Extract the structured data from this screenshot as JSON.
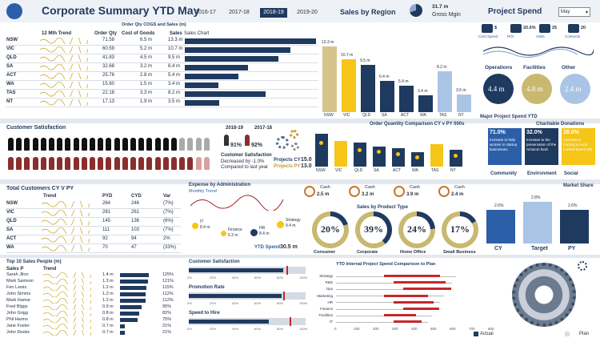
{
  "title": "Corporate Summary YTD May",
  "years": [
    "2016-17",
    "2017-18",
    "2018-19",
    "2019-20"
  ],
  "active_year": "2018-19",
  "sales_region_title": "Sales by Region",
  "gross_margin": {
    "value": "31.7 m",
    "label": "Gross Mgin"
  },
  "project_spend_title": "Project Spend",
  "month_select": "May",
  "kpi_icons": [
    {
      "label": "Card Spend",
      "value": "$"
    },
    {
      "label": "ROI",
      "value": "20.6%"
    },
    {
      "label": "Visits",
      "value": "25"
    },
    {
      "label": "Contracts",
      "value": "20"
    }
  ],
  "spend_circles": [
    {
      "label": "Operations",
      "value": "4.4 m"
    },
    {
      "label": "Facilities",
      "value": "4.8 m"
    },
    {
      "label": "Other",
      "value": "2.4 m"
    }
  ],
  "region_table": {
    "title": "Order Qty COGS and Sales (m)",
    "headers": [
      "State",
      "12 Mth Trend",
      "Order Qty",
      "Cost of Goods",
      "Sales",
      "Sales Chart"
    ],
    "rows": [
      [
        "NSW",
        "71.58",
        "6.5 m",
        "13.3 m"
      ],
      [
        "VIC",
        "60.59",
        "5.2 m",
        "10.7 m"
      ],
      [
        "QLD",
        "41.83",
        "4.5 m",
        "9.5 m"
      ],
      [
        "SA",
        "32.68",
        "3.2 m",
        "6.4 m"
      ],
      [
        "ACT",
        "25.76",
        "2.8 m",
        "5.4 m"
      ],
      [
        "WA",
        "15.60",
        "1.5 m",
        "3.4 m"
      ],
      [
        "TAS",
        "22.18",
        "3.3 m",
        "8.2 m"
      ],
      [
        "NT",
        "17.13",
        "1.9 m",
        "3.5 m"
      ]
    ]
  },
  "chart_data": [
    {
      "type": "bar",
      "title": "Sales by Region",
      "categories": [
        "NSW",
        "VIC",
        "QLD",
        "SA",
        "ACT",
        "WA",
        "TAS",
        "NT"
      ],
      "values": [
        13.3,
        10.7,
        9.5,
        6.4,
        5.4,
        3.4,
        8.2,
        3.5
      ],
      "value_labels": [
        "13.3 m",
        "10.7 m",
        "9.5 m",
        "6.4 m",
        "5.4 m",
        "3.4 m",
        "8.2 m",
        "3.5 m"
      ]
    },
    {
      "type": "bar",
      "title": "Order Quantity Comparison CY v PY 000s",
      "categories": [
        "NSW",
        "VIC",
        "QLD",
        "SA",
        "ACT",
        "WA",
        "TAS",
        "NT"
      ],
      "series": [
        {
          "name": "CY",
          "values": [
            18,
            14,
            13,
            11,
            10,
            8,
            12,
            9
          ]
        },
        {
          "name": "PY",
          "values": [
            14,
            12,
            10,
            9,
            8,
            6,
            10,
            7
          ]
        }
      ],
      "ylim": [
        0,
        20
      ]
    },
    {
      "type": "bar",
      "title": "Market Share",
      "categories": [
        "CY",
        "Target",
        "PY"
      ],
      "values": [
        2.6,
        2.8,
        2.6
      ],
      "value_labels": [
        "2.6%",
        "2.8%",
        "2.6%"
      ]
    }
  ],
  "customer_satisfaction": {
    "title": "Customer Satisfaction",
    "y1": "2018-19",
    "y2": "2017-18",
    "v1": "91%",
    "v2": "92%",
    "label": "Customer Satisfaction",
    "line2": "Decreased by -1.0%",
    "line3": "Compared to last year",
    "projects_cy_label": "Projects CY",
    "projects_cy": "15.0",
    "projects_py_label": "Projects PY",
    "projects_py": "13.0"
  },
  "major_project": {
    "title": "Major Project Spend YTD",
    "charitable": "Charitable Donations",
    "boxes": [
      {
        "pct": "71.0%",
        "text": "Increase to help women in startup businesses.",
        "label": "Community"
      },
      {
        "pct": "32.0%",
        "text": "Increase to the preservation of the Amazon fund.",
        "label": "Environment"
      },
      {
        "pct": "28.0%",
        "text": "Increase in funding to local football teams (M)",
        "label": "Social"
      }
    ]
  },
  "customers_table": {
    "title": "Total Customers CY V PY",
    "headers": [
      "State",
      "Trend",
      "PYD",
      "CYD",
      "Var"
    ],
    "rows": [
      [
        "NSW",
        "264",
        "246",
        "(7%)"
      ],
      [
        "VIC",
        "281",
        "261",
        "(7%)"
      ],
      [
        "QLD",
        "145",
        "136",
        "(6%)"
      ],
      [
        "SA",
        "111",
        "103",
        "(7%)"
      ],
      [
        "ACT",
        "92",
        "94",
        "2%"
      ],
      [
        "WA",
        "70",
        "47",
        "(33%)"
      ]
    ]
  },
  "expense": {
    "title": "Expense by Administration",
    "trend": "Monthly Trend",
    "bubbles": [
      {
        "name": "IT",
        "value": "8.4 m"
      },
      {
        "name": "Finance",
        "value": "6.3 m"
      },
      {
        "name": "HR",
        "value": "8.4 m"
      },
      {
        "name": "Strategy",
        "value": "9.4 m"
      }
    ],
    "ytd_label": "YTD Spend",
    "ytd_value": "30.5 m"
  },
  "cash": [
    {
      "label": "Cash",
      "value": "2.5 m"
    },
    {
      "label": "Cash",
      "value": "3.2 m"
    },
    {
      "label": "Cash",
      "value": "3.9 m"
    },
    {
      "label": "Cash",
      "value": "2.4 m"
    }
  ],
  "product_type": {
    "title": "Sales by Product Type",
    "items": [
      {
        "label": "Consumer",
        "value": "20%",
        "pct": 20
      },
      {
        "label": "Corporate",
        "value": "39%",
        "pct": 39
      },
      {
        "label": "Home Office",
        "value": "24%",
        "pct": 24
      },
      {
        "label": "Small Business",
        "value": "17%",
        "pct": 17
      }
    ]
  },
  "market_share_title": "Market Share",
  "top10": {
    "title": "Top 10 Sales People (m)",
    "headers": [
      "Sales P",
      "Trend",
      "",
      ""
    ],
    "rows": [
      [
        "Sarah Jilon",
        "1.4 m",
        "125%"
      ],
      [
        "Mark Samson",
        "1.3 m",
        "121%"
      ],
      [
        "Fen Lewis",
        "1.2 m",
        "115%"
      ],
      [
        "John Simms",
        "1.2 m",
        "112%"
      ],
      [
        "Mark Hamar",
        "1.2 m",
        "112%"
      ],
      [
        "Fred Blggs",
        "0.9 m",
        "95%"
      ],
      [
        "John Grigg",
        "0.8 m",
        "82%"
      ],
      [
        "Phil Harms",
        "0.8 m",
        "75%"
      ],
      [
        "Jane Foster",
        "0.7 m",
        "21%"
      ],
      [
        "John Deeks",
        "0.7 m",
        "21%"
      ]
    ]
  },
  "gauges": {
    "title": "Customer Satisfaction",
    "promo": "Promotion Rate",
    "speed": "Speed to Hire",
    "ticks": [
      "0%",
      "20%",
      "40%",
      "60%",
      "80%",
      "100%"
    ]
  },
  "internal": {
    "title": "YTD Internal Project Spend Comparison to Plan",
    "cats": [
      "Strategy",
      "R&D",
      "Ops",
      "Marketing",
      "HR",
      "Finance",
      "Facilities",
      "IT"
    ],
    "axis": [
      "0",
      "100",
      "200",
      "300",
      "400",
      "500",
      "600",
      "700",
      "800"
    ],
    "actual": "Actual",
    "plan": "Plan"
  }
}
